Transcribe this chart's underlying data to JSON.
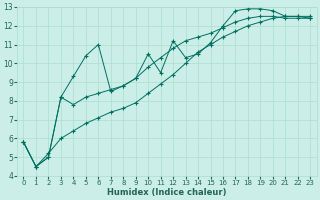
{
  "xlabel": "Humidex (Indice chaleur)",
  "ylabel": "",
  "background_color": "#cceee8",
  "grid_color": "#aaddcc",
  "line_color": "#007060",
  "xlim": [
    -0.5,
    23.5
  ],
  "ylim": [
    4,
    13
  ],
  "xticks": [
    0,
    1,
    2,
    3,
    4,
    5,
    6,
    7,
    8,
    9,
    10,
    11,
    12,
    13,
    14,
    15,
    16,
    17,
    18,
    19,
    20,
    21,
    22,
    23
  ],
  "yticks": [
    4,
    5,
    6,
    7,
    8,
    9,
    10,
    11,
    12,
    13
  ],
  "line1_x": [
    0,
    1,
    2,
    3,
    4,
    5,
    6,
    7,
    8,
    9,
    10,
    11,
    12,
    13,
    14,
    15,
    16,
    17,
    18,
    19,
    20,
    21,
    22,
    23
  ],
  "line1_y": [
    5.8,
    4.5,
    5.0,
    8.2,
    9.3,
    10.4,
    11.0,
    8.5,
    8.8,
    9.2,
    10.5,
    9.5,
    11.2,
    10.3,
    10.5,
    11.1,
    12.0,
    12.8,
    12.9,
    12.9,
    12.8,
    12.5,
    12.5,
    12.5
  ],
  "line2_x": [
    0,
    1,
    2,
    3,
    4,
    5,
    6,
    7,
    8,
    9,
    10,
    11,
    12,
    13,
    14,
    15,
    16,
    17,
    18,
    19,
    20,
    21,
    22,
    23
  ],
  "line2_y": [
    5.8,
    4.5,
    5.0,
    8.2,
    7.8,
    8.2,
    8.4,
    8.6,
    8.8,
    9.2,
    9.8,
    10.3,
    10.8,
    11.2,
    11.4,
    11.6,
    11.9,
    12.2,
    12.4,
    12.5,
    12.5,
    12.4,
    12.4,
    12.4
  ],
  "line3_x": [
    0,
    1,
    2,
    3,
    4,
    5,
    6,
    7,
    8,
    9,
    10,
    11,
    12,
    13,
    14,
    15,
    16,
    17,
    18,
    19,
    20,
    21,
    22,
    23
  ],
  "line3_y": [
    5.8,
    4.5,
    5.2,
    6.0,
    6.4,
    6.8,
    7.1,
    7.4,
    7.6,
    7.9,
    8.4,
    8.9,
    9.4,
    10.0,
    10.6,
    11.0,
    11.4,
    11.7,
    12.0,
    12.2,
    12.4,
    12.5,
    12.5,
    12.4
  ]
}
